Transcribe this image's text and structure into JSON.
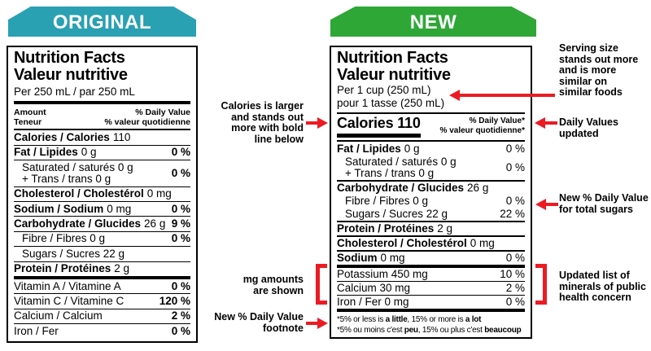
{
  "banners": {
    "original": "ORIGINAL",
    "new": "NEW"
  },
  "colors": {
    "teal": "#2AA0B3",
    "green": "#2EA737",
    "red": "#EC1B23"
  },
  "original_label": {
    "title_en": "Nutrition Facts",
    "title_fr": "Valeur nutritive",
    "serving": "Per 250 mL / par 250 mL",
    "col_amount_en": "Amount",
    "col_amount_fr": "Teneur",
    "col_dv_en": "% Daily Value",
    "col_dv_fr": "% valeur quotidienne",
    "rows": [
      {
        "n": "Calories / Calories",
        "r": "110",
        "dv": "",
        "sep": "thin"
      },
      {
        "n": "Fat / Lipides",
        "r": "0 g",
        "dv": "0 %",
        "sep": "thin"
      },
      {
        "lines": [
          "Saturated / saturés 0 g",
          "+ Trans / trans 0 g"
        ],
        "ind": true,
        "dv": "0 %",
        "sep": "thin"
      },
      {
        "n": "Cholesterol / Cholestérol",
        "r": "0 mg",
        "dv": "",
        "sep": "thin"
      },
      {
        "n": "Sodium / Sodium",
        "r": "0 mg",
        "dv": "0 %",
        "sep": "thin"
      },
      {
        "n": "Carbohydrate / Glucides",
        "r": "26 g",
        "dv": "9 %",
        "sep": "thin"
      },
      {
        "r": "Fibre / Fibres 0 g",
        "ind": true,
        "dv": "0 %",
        "sep": "thin"
      },
      {
        "r": "Sugars / Sucres 22 g",
        "ind": true,
        "dv": "",
        "sep": "thin"
      },
      {
        "n": "Protein / Protéines",
        "r": "2 g",
        "dv": "",
        "sep": "thick"
      },
      {
        "r": "Vitamin A / Vitamine A",
        "dv": "0 %",
        "sep": "thin"
      },
      {
        "r": "Vitamin C / Vitamine C",
        "dv": "120 %",
        "sep": "thin"
      },
      {
        "r": "Calcium / Calcium",
        "dv": "2 %",
        "sep": "thin"
      },
      {
        "r": "Iron / Fer",
        "dv": "0 %",
        "sep": "none"
      }
    ]
  },
  "new_label": {
    "title_en": "Nutrition Facts",
    "title_fr": "Valeur nutritive",
    "serving_en": "Per 1 cup (250 mL)",
    "serving_fr": "pour 1 tasse (250 mL)",
    "calories": "Calories 110",
    "dv_header_en": "% Daily Value*",
    "dv_header_fr": "% valeur quotidienne*",
    "rows": [
      {
        "n": "Fat / Lipides",
        "r": "0 g",
        "dv": "0 %",
        "sep": "none"
      },
      {
        "lines": [
          "Saturated / saturés 0 g",
          "+ Trans / trans 0 g"
        ],
        "ind": true,
        "dv": "0 %",
        "sep": "med"
      },
      {
        "n": "Carbohydrate / Glucides",
        "r": "26 g",
        "dv": "",
        "sep": "none"
      },
      {
        "r": "Fibre / Fibres 0 g",
        "ind": true,
        "dv": "0 %",
        "sep": "none"
      },
      {
        "r": "Sugars / Sucres 22 g",
        "ind": true,
        "dv": "22 %",
        "sep": "med"
      },
      {
        "n": "Protein / Protéines",
        "r": "2 g",
        "dv": "",
        "sep": "med"
      },
      {
        "n": "Cholesterol / Cholestérol",
        "r": "0 mg",
        "dv": "",
        "sep": "med"
      },
      {
        "n": "Sodium",
        "r": "0 mg",
        "dv": "0 %",
        "sep": "thick"
      },
      {
        "r": "Potassium 450 mg",
        "dv": "10 %",
        "sep": "thin"
      },
      {
        "r": "Calcium 30 mg",
        "dv": "2 %",
        "sep": "thin"
      },
      {
        "r": "Iron / Fer 0 mg",
        "dv": "0 %",
        "sep": "thick"
      }
    ],
    "footnote_en": [
      "*5% or less is ",
      "a little",
      ", 15% or more is ",
      "a lot"
    ],
    "footnote_fr": [
      "*5% ou moins c'est ",
      "peu",
      ", 15% ou plus c'est ",
      "beaucoup"
    ]
  },
  "annotations": {
    "left": [
      {
        "lines": [
          "Calories is larger",
          "and stands out",
          "more with bold",
          "line below"
        ]
      },
      {
        "lines": [
          "mg amounts",
          "are shown"
        ]
      },
      {
        "lines": [
          "New % Daily Value",
          "footnote"
        ]
      }
    ],
    "right": [
      {
        "lines": [
          "Serving size",
          "stands out more",
          "and is more",
          "similar on",
          "similar foods"
        ]
      },
      {
        "lines": [
          "Daily Values",
          "updated"
        ]
      },
      {
        "lines": [
          "New % Daily Value",
          "for total sugars"
        ]
      },
      {
        "lines": [
          "Updated list of",
          "minerals of public",
          "health concern"
        ]
      }
    ]
  }
}
